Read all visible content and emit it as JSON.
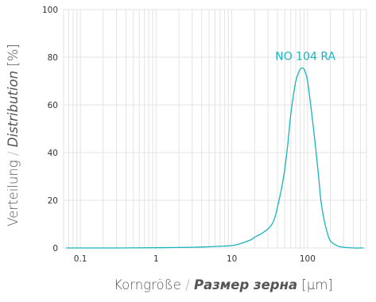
{
  "chart_data": {
    "type": "line",
    "title": "",
    "xscale": "log",
    "xlim": [
      0.06,
      600
    ],
    "ylim": [
      0,
      100
    ],
    "grid": true,
    "xticks": [
      0.1,
      1,
      10,
      100
    ],
    "xtick_labels": [
      "0.1",
      "1",
      "10",
      "100"
    ],
    "yticks": [
      0,
      20,
      40,
      60,
      80,
      100
    ],
    "ytick_labels": [
      "0",
      "20",
      "40",
      "60",
      "80",
      "100"
    ],
    "xlabel": {
      "part1": "Korngröße",
      "sep": " / ",
      "part2": "Размер зерна",
      "part3": " [µm]"
    },
    "ylabel": {
      "part1": "Verteilung",
      "sep": " / ",
      "part2": "Distribution",
      "part3": " [%]"
    },
    "series": [
      {
        "name": "NO 104 RA",
        "color": "#1ab3bd",
        "x": [
          0.065,
          0.1,
          0.3,
          1,
          2,
          3,
          5,
          8,
          10,
          12,
          15,
          18,
          20,
          23,
          26,
          30,
          34,
          38,
          42,
          46,
          50,
          55,
          60,
          65,
          70,
          75,
          80,
          85,
          90,
          95,
          100,
          110,
          120,
          130,
          140,
          150,
          165,
          180,
          200,
          250,
          300,
          400,
          550
        ],
        "y": [
          0,
          0,
          0,
          0.1,
          0.2,
          0.3,
          0.5,
          0.8,
          1.0,
          1.5,
          2.5,
          3.5,
          4.5,
          5.5,
          6.5,
          8,
          10,
          14,
          20,
          26,
          33,
          44,
          56,
          64,
          70,
          73,
          75,
          75.5,
          75,
          73,
          70,
          60,
          50,
          40,
          30,
          20,
          12,
          7,
          3,
          0.8,
          0.3,
          0,
          0
        ]
      }
    ]
  }
}
